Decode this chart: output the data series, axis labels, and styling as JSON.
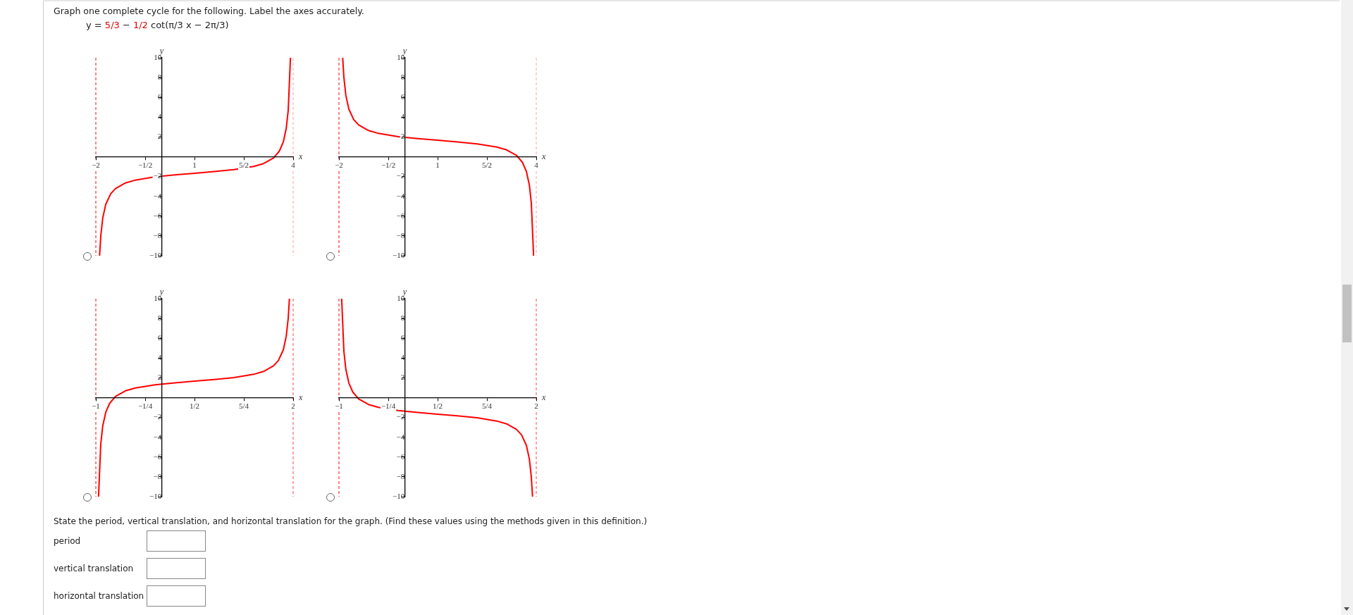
{
  "chart_data": [
    {
      "type": "line",
      "title": "Graph one complete cycle for the following. Label the axes accurately.",
      "subtitle": "y = 5/3 − 1/2 cot(π/3 x − 2π/3)",
      "xlabel": "x",
      "ylabel": "y",
      "marker": "none",
      "xlim": [
        -2,
        4
      ],
      "ylim": [
        -10,
        10
      ],
      "xticks": [
        -2,
        {
          "value": -0.5,
          "label": "−1/2"
        },
        1,
        {
          "value": 2.5,
          "label": "5/2"
        },
        4
      ],
      "yticks": [
        -10,
        -8,
        -6,
        -4,
        -2,
        2,
        4,
        6,
        8,
        10
      ],
      "ref_lines": [
        {
          "axis": "x",
          "value": -2,
          "color": "#ff3333",
          "line_style": "dashed"
        },
        {
          "axis": "x",
          "value": 4,
          "color": "#ffb3b3",
          "line_style": "dashed"
        }
      ],
      "series": [
        {
          "color": "#ff0000",
          "x": [
            -1.886,
            -1.85,
            -1.79,
            -1.7,
            -1.55,
            -1.4,
            -1.1,
            -0.8,
            -0.2,
            0.4,
            1,
            1.6,
            2.2,
            2.8,
            3.1,
            3.4,
            3.58,
            3.7,
            3.79,
            3.85,
            3.918
          ],
          "values": [
            -10,
            -8.02,
            -6.2,
            -4.82,
            -3.75,
            -3.21,
            -2.65,
            -2.36,
            -2.03,
            -1.83,
            -1.67,
            -1.5,
            -1.3,
            -0.98,
            -0.69,
            -0.13,
            0.57,
            1.49,
            2.86,
            4.69,
            10
          ]
        }
      ]
    },
    {
      "type": "line",
      "xlabel": "x",
      "ylabel": "y",
      "marker": "none",
      "xlim": [
        -2,
        4
      ],
      "ylim": [
        -10,
        10
      ],
      "xticks": [
        -2,
        {
          "value": -0.5,
          "label": "−1/2"
        },
        1,
        {
          "value": 2.5,
          "label": "5/2"
        },
        4
      ],
      "yticks": [
        -10,
        -8,
        -6,
        -4,
        -2,
        2,
        4,
        6,
        8,
        10
      ],
      "ref_lines": [
        {
          "axis": "x",
          "value": -2,
          "color": "#ff3333",
          "line_style": "dashed"
        },
        {
          "axis": "x",
          "value": 4,
          "color": "#ffb3b3",
          "line_style": "dashed"
        }
      ],
      "series": [
        {
          "color": "#ff0000",
          "x": [
            -1.886,
            -1.85,
            -1.79,
            -1.7,
            -1.55,
            -1.4,
            -1.1,
            -0.8,
            -0.2,
            0.4,
            1,
            1.6,
            2.2,
            2.8,
            3.1,
            3.4,
            3.58,
            3.7,
            3.79,
            3.85,
            3.918
          ],
          "values": [
            10,
            8.02,
            6.2,
            4.82,
            3.75,
            3.21,
            2.65,
            2.36,
            2.03,
            1.83,
            1.67,
            1.5,
            1.3,
            0.98,
            0.69,
            0.13,
            -0.57,
            -1.49,
            -2.86,
            -4.69,
            -10
          ]
        }
      ]
    },
    {
      "type": "line",
      "xlabel": "x",
      "ylabel": "y",
      "marker": "none",
      "xlim": [
        -1,
        2
      ],
      "ylim": [
        -10,
        10
      ],
      "xticks": [
        -1,
        {
          "value": -0.25,
          "label": "−1/4"
        },
        {
          "value": 0.5,
          "label": "1/2"
        },
        {
          "value": 1.25,
          "label": "5/4"
        },
        2
      ],
      "yticks": [
        -10,
        -8,
        -6,
        -4,
        -2,
        2,
        4,
        6,
        8,
        10
      ],
      "ref_lines": [
        {
          "axis": "x",
          "value": -1,
          "color": "#ff3333",
          "line_style": "dashed"
        },
        {
          "axis": "x",
          "value": 2,
          "color": "#ff6666",
          "line_style": "dashed"
        }
      ],
      "series": [
        {
          "color": "#ff0000",
          "x": [
            -0.959,
            -0.925,
            -0.895,
            -0.85,
            -0.79,
            -0.7,
            -0.55,
            -0.4,
            -0.1,
            0.2,
            0.5,
            0.8,
            1.1,
            1.4,
            1.55,
            1.7,
            1.775,
            1.85,
            1.895,
            1.925,
            1.943
          ],
          "values": [
            -10,
            -4.69,
            -2.86,
            -1.49,
            -0.57,
            0.13,
            0.69,
            0.98,
            1.3,
            1.5,
            1.67,
            1.83,
            2.03,
            2.36,
            2.65,
            3.21,
            3.75,
            4.82,
            6.2,
            8.02,
            10
          ]
        }
      ]
    },
    {
      "type": "line",
      "xlabel": "x",
      "ylabel": "y",
      "marker": "none",
      "xlim": [
        -1,
        2
      ],
      "ylim": [
        -10,
        10
      ],
      "xticks": [
        -1,
        {
          "value": -0.25,
          "label": "−1/4"
        },
        {
          "value": 0.5,
          "label": "1/2"
        },
        {
          "value": 1.25,
          "label": "5/4"
        },
        2
      ],
      "yticks": [
        -10,
        -8,
        -6,
        -4,
        -2,
        2,
        4,
        6,
        8,
        10
      ],
      "ref_lines": [
        {
          "axis": "x",
          "value": -1,
          "color": "#ff3333",
          "line_style": "dashed"
        },
        {
          "axis": "x",
          "value": 2,
          "color": "#ff6666",
          "line_style": "dashed"
        }
      ],
      "series": [
        {
          "color": "#ff0000",
          "x": [
            -0.959,
            -0.925,
            -0.895,
            -0.85,
            -0.79,
            -0.7,
            -0.55,
            -0.4,
            -0.1,
            0.2,
            0.5,
            0.8,
            1.1,
            1.4,
            1.55,
            1.7,
            1.775,
            1.85,
            1.895,
            1.925,
            1.943
          ],
          "values": [
            10,
            4.69,
            2.86,
            1.49,
            0.57,
            -0.13,
            -0.69,
            -0.98,
            -1.3,
            -1.5,
            -1.67,
            -1.83,
            -2.03,
            -2.36,
            -2.65,
            -3.21,
            -3.75,
            -4.82,
            -6.2,
            -8.02,
            -10
          ]
        }
      ],
      "annotations": [
        "State the period, vertical translation, and horizontal translation for the graph. (Find these values using the methods given in this definition.)",
        "period",
        "vertical translation",
        "horizontal translation"
      ]
    }
  ]
}
